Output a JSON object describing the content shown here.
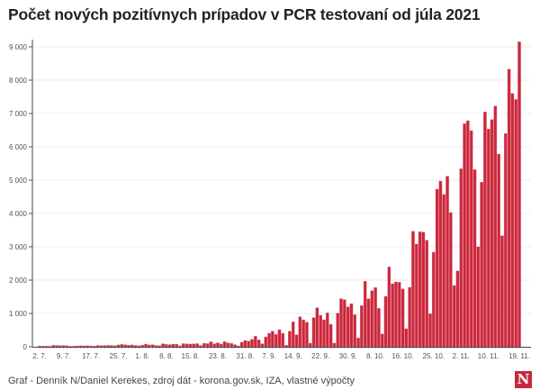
{
  "chart_data": {
    "type": "bar",
    "title": "Počet nových pozitívnych prípadov v PCR testovaní od júla 2021",
    "xlabel": "",
    "ylabel": "",
    "ylim": [
      0,
      9000
    ],
    "yticks": [
      0,
      1000,
      2000,
      3000,
      4000,
      5000,
      6000,
      7000,
      8000,
      9000
    ],
    "ytick_labels": [
      "0",
      "1 000",
      "2 000",
      "3 000",
      "4 000",
      "5 000",
      "6 000",
      "7 000",
      "8 000",
      "9 000"
    ],
    "x_start": "2021-07-02",
    "x_end": "2021-11-19",
    "xtick_labels": [
      "2. 7.",
      "9. 7.",
      "17. 7.",
      "25. 7.",
      "1. 8.",
      "8. 8.",
      "15. 8.",
      "23. 8.",
      "31. 8.",
      "7. 9.",
      "14. 9.",
      "22. 9.",
      "30. 9.",
      "8. 10.",
      "16. 10.",
      "25. 10.",
      "2. 11.",
      "10. 11.",
      "19. 11."
    ],
    "xtick_dates": [
      "2021-07-02",
      "2021-07-09",
      "2021-07-17",
      "2021-07-25",
      "2021-08-01",
      "2021-08-08",
      "2021-08-15",
      "2021-08-23",
      "2021-08-31",
      "2021-09-07",
      "2021-09-14",
      "2021-09-22",
      "2021-09-30",
      "2021-10-08",
      "2021-10-16",
      "2021-10-25",
      "2021-11-02",
      "2021-11-10",
      "2021-11-19"
    ],
    "grid": true,
    "color": "#c8283c",
    "values": [
      25,
      20,
      18,
      15,
      45,
      40,
      35,
      38,
      30,
      15,
      20,
      25,
      30,
      28,
      35,
      25,
      20,
      40,
      35,
      38,
      42,
      40,
      30,
      55,
      70,
      60,
      45,
      55,
      40,
      30,
      50,
      80,
      55,
      60,
      40,
      35,
      90,
      70,
      65,
      80,
      75,
      30,
      95,
      85,
      80,
      90,
      95,
      40,
      105,
      95,
      150,
      90,
      120,
      80,
      153,
      117,
      99,
      63,
      27,
      135,
      189,
      171,
      225,
      315,
      207,
      90,
      297,
      405,
      468,
      369,
      513,
      405,
      45,
      468,
      747,
      360,
      900,
      810,
      738,
      108,
      875,
      1170,
      946,
      810,
      1017,
      675,
      108,
      1008,
      1441,
      1414,
      1198,
      1288,
      964,
      261,
      1234,
      1966,
      1441,
      1684,
      1775,
      1153,
      387,
      1513,
      2396,
      1892,
      1946,
      1937,
      1738,
      541,
      1784,
      3468,
      3081,
      3450,
      3441,
      3198,
      991,
      2838,
      4730,
      4973,
      4568,
      5117,
      4027,
      1838,
      2279,
      5342,
      6694,
      6784,
      6486,
      5315,
      3000,
      4937,
      7045,
      6532,
      6820,
      7225,
      5784,
      3333,
      6396,
      8330,
      7600,
      7420,
      9150
    ]
  },
  "footer": "Graf - Denník N/Daniel Kerekes, zdroj dát - korona.gov.sk, IZA, vlastné výpočty",
  "logo": "N"
}
